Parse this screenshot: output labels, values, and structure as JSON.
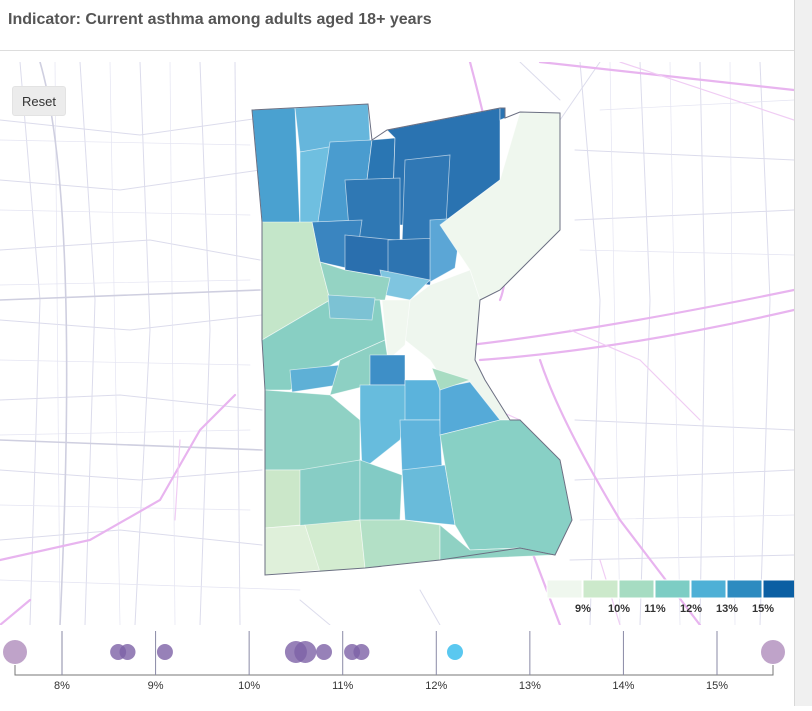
{
  "header": {
    "title": "Indicator: Current asthma among adults aged 18+ years"
  },
  "map": {
    "reset_label": "Reset",
    "legend": {
      "labels": [
        "9%",
        "10%",
        "11%",
        "12%",
        "13%",
        "15%"
      ],
      "colors": [
        "#eff7ee",
        "#cce9cb",
        "#a6dcc2",
        "#7dcdc4",
        "#4eb0d6",
        "#2d8bc0",
        "#0b5fa3"
      ]
    }
  },
  "strip": {
    "ticks": [
      "8%",
      "9%",
      "10%",
      "11%",
      "12%",
      "13%",
      "14%",
      "15%"
    ],
    "tick_values": [
      8,
      9,
      10,
      11,
      12,
      13,
      14,
      15
    ],
    "points": [
      {
        "value": 7.5,
        "highlight": false
      },
      {
        "value": 8.6,
        "highlight": false
      },
      {
        "value": 8.7,
        "highlight": false
      },
      {
        "value": 9.1,
        "highlight": false
      },
      {
        "value": 10.5,
        "highlight": false
      },
      {
        "value": 10.6,
        "highlight": false
      },
      {
        "value": 10.8,
        "highlight": false
      },
      {
        "value": 11.1,
        "highlight": false
      },
      {
        "value": 11.2,
        "highlight": false
      },
      {
        "value": 12.2,
        "highlight": true
      },
      {
        "value": 15.6,
        "highlight": false
      }
    ]
  }
}
